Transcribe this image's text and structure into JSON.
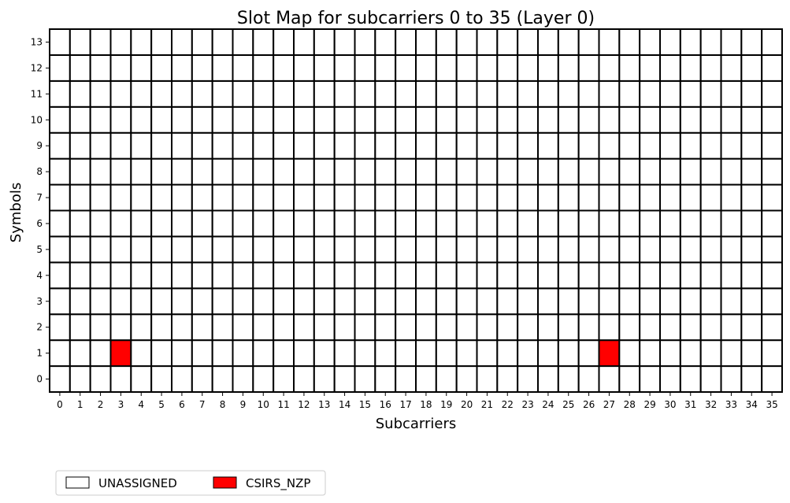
{
  "chart_data": {
    "type": "heatmap",
    "title": "Slot Map for subcarriers 0 to 35 (Layer 0)",
    "xlabel": "Subcarriers",
    "ylabel": "Symbols",
    "x": [
      0,
      1,
      2,
      3,
      4,
      5,
      6,
      7,
      8,
      9,
      10,
      11,
      12,
      13,
      14,
      15,
      16,
      17,
      18,
      19,
      20,
      21,
      22,
      23,
      24,
      25,
      26,
      27,
      28,
      29,
      30,
      31,
      32,
      33,
      34,
      35
    ],
    "y": [
      0,
      1,
      2,
      3,
      4,
      5,
      6,
      7,
      8,
      9,
      10,
      11,
      12,
      13
    ],
    "xlim": [
      0,
      35
    ],
    "ylim": [
      0,
      13
    ],
    "grid": true,
    "legend_position": "bottom-left",
    "categories": [
      {
        "name": "UNASSIGNED",
        "color": "#ffffff"
      },
      {
        "name": "CSIRS_NZP",
        "color": "#ff0000"
      }
    ],
    "default_category": "UNASSIGNED",
    "cells": [
      {
        "x": 3,
        "y": 1,
        "category": "CSIRS_NZP"
      },
      {
        "x": 27,
        "y": 1,
        "category": "CSIRS_NZP"
      }
    ]
  }
}
